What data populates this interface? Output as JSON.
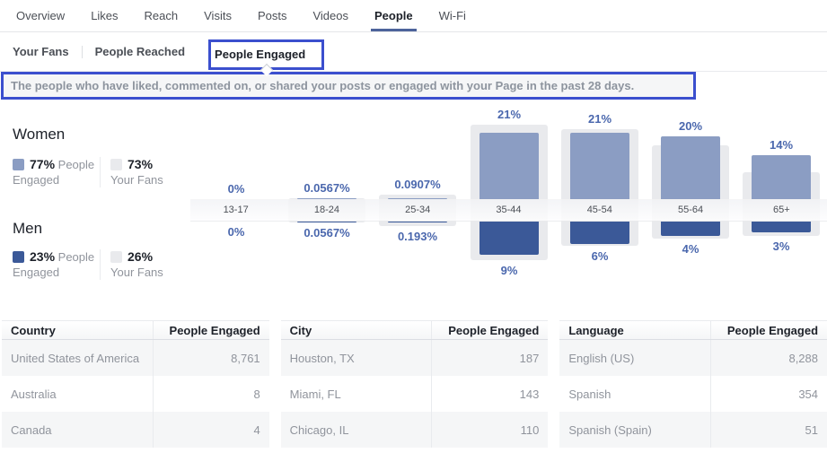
{
  "nav": {
    "tabs": [
      {
        "label": "Overview",
        "active": false
      },
      {
        "label": "Likes",
        "active": false
      },
      {
        "label": "Reach",
        "active": false
      },
      {
        "label": "Visits",
        "active": false
      },
      {
        "label": "Posts",
        "active": false
      },
      {
        "label": "Videos",
        "active": false
      },
      {
        "label": "People",
        "active": true
      },
      {
        "label": "Wi-Fi",
        "active": false
      }
    ]
  },
  "subnav": {
    "items": [
      {
        "label": "Your Fans",
        "active": false
      },
      {
        "label": "People Reached",
        "active": false
      },
      {
        "label": "People Engaged",
        "active": true,
        "highlighted": true
      }
    ]
  },
  "description": {
    "text": "The people who have liked, commented on, or shared your posts or engaged with your Page in the past 28 days."
  },
  "audience": {
    "women": {
      "title": "Women",
      "engaged_pct": "77%",
      "engaged_label": "People Engaged",
      "fans_pct": "73%",
      "fans_label": "Your Fans"
    },
    "men": {
      "title": "Men",
      "engaged_pct": "23%",
      "engaged_label": "People Engaged",
      "fans_pct": "26%",
      "fans_label": "Your Fans"
    }
  },
  "chart_data": {
    "type": "bar",
    "title": "People Engaged by age and gender vs Your Fans",
    "categories": [
      "13-17",
      "18-24",
      "25-34",
      "35-44",
      "45-54",
      "55-64",
      "65+"
    ],
    "series": [
      {
        "name": "Women - People Engaged",
        "values": [
          0,
          0.0567,
          0.0907,
          21,
          21,
          20,
          14
        ],
        "labels": [
          "0%",
          "0.0567%",
          "0.0907%",
          "21%",
          "21%",
          "20%",
          "14%"
        ]
      },
      {
        "name": "Men - People Engaged",
        "values": [
          0,
          0.0567,
          0.193,
          9,
          6,
          4,
          3
        ],
        "labels": [
          "0%",
          "0.0567%",
          "0.193%",
          "9%",
          "6%",
          "4%",
          "3%"
        ]
      },
      {
        "name": "Women - Your Fans (unlabeled, estimated from bar heights)",
        "values": [
          0,
          0.3,
          1.3,
          23.5,
          22,
          17,
          8.5
        ],
        "labels": null
      },
      {
        "name": "Men - Your Fans (unlabeled, estimated from bar heights)",
        "values": [
          0,
          0.2,
          1.2,
          10.5,
          6.5,
          4.6,
          4
        ],
        "labels": null
      }
    ],
    "totals": {
      "women_engaged": "77%",
      "women_fans": "73%",
      "men_engaged": "23%",
      "men_fans": "26%"
    },
    "legend_position": "left",
    "grid": false
  },
  "tables": [
    {
      "headers": [
        "Country",
        "People Engaged"
      ],
      "rows": [
        [
          "United States of America",
          "8,761"
        ],
        [
          "Australia",
          "8"
        ],
        [
          "Canada",
          "4"
        ]
      ]
    },
    {
      "headers": [
        "City",
        "People Engaged"
      ],
      "rows": [
        [
          "Houston, TX",
          "187"
        ],
        [
          "Miami, FL",
          "143"
        ],
        [
          "Chicago, IL",
          "110"
        ]
      ]
    },
    {
      "headers": [
        "Language",
        "People Engaged"
      ],
      "rows": [
        [
          "English (US)",
          "8,288"
        ],
        [
          "Spanish",
          "354"
        ],
        [
          "Spanish (Spain)",
          "51"
        ]
      ]
    }
  ],
  "colors": {
    "page_text": "#1d2129",
    "muted_text": "#90949c",
    "nav_text": "#4b4f56",
    "active_tab_underline": "#4d649b",
    "women_bar": "#8b9dc3",
    "men_bar": "#3b5998",
    "fans_bar": "#e9eaed",
    "pct_label": "#4a67ad",
    "annotation_box": "#3b4fce",
    "row_stripe": "#f5f6f7"
  }
}
